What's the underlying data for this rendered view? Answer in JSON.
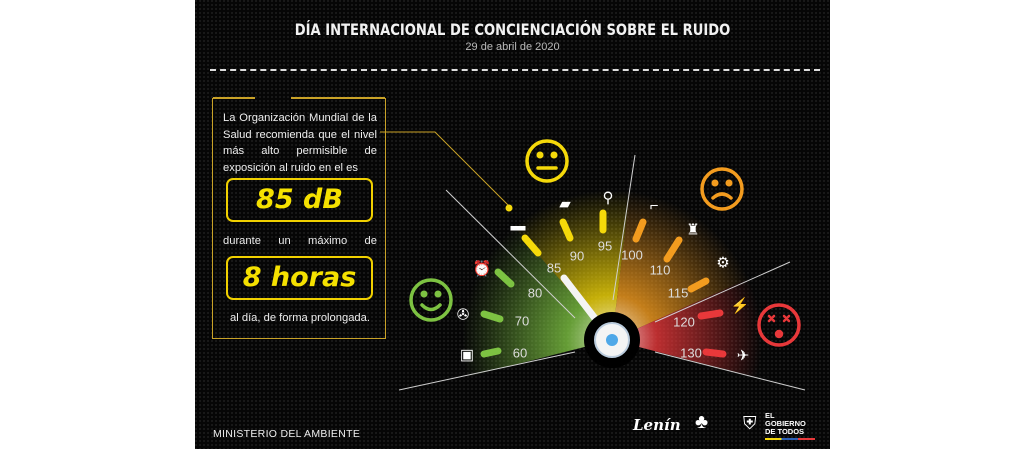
{
  "header": {
    "title": "DÍA INTERNACIONAL DE CONCIENCIACIÓN SOBRE EL RUIDO",
    "date": "29 de abril de 2020"
  },
  "info": {
    "intro": "La Organización Mundial de la Salud recomienda que el nivel más alto permisible de exposición al ruido en el es",
    "limit_db": "85 dB",
    "during": "durante un máximo de",
    "limit_hours": "8 horas",
    "per_day": "al día, de forma prolongada."
  },
  "gauge": {
    "needle_value": 85,
    "ticks": [
      {
        "label": "60",
        "icon": "washing-machine-icon",
        "color": "#7dc242"
      },
      {
        "label": "70",
        "icon": "fan-icon",
        "color": "#7dc242"
      },
      {
        "label": "80",
        "icon": "alarm-clock-icon",
        "color": "#7dc242"
      },
      {
        "label": "85",
        "icon": "car-icon",
        "color": "#f5d90a"
      },
      {
        "label": "90",
        "icon": "truck-icon",
        "color": "#f5d90a"
      },
      {
        "label": "95",
        "icon": "motorcycle-icon",
        "color": "#f5d90a"
      },
      {
        "label": "100",
        "icon": "hair-dryer-icon",
        "color": "#f39c1f"
      },
      {
        "label": "110",
        "icon": "blender-icon",
        "color": "#f39c1f"
      },
      {
        "label": "115",
        "icon": "tractor-icon",
        "color": "#f39c1f"
      },
      {
        "label": "120",
        "icon": "thunder-icon",
        "color": "#e8383a"
      },
      {
        "label": "130",
        "icon": "airplane-icon",
        "color": "#e8383a"
      }
    ],
    "faces": [
      {
        "name": "happy-face-icon",
        "color": "#7dc242"
      },
      {
        "name": "neutral-face-icon",
        "color": "#f5d90a"
      },
      {
        "name": "sad-face-icon",
        "color": "#f39c1f"
      },
      {
        "name": "dizzy-face-icon",
        "color": "#e8383a"
      }
    ]
  },
  "footer": {
    "ministry": "MINISTERIO DEL AMBIENTE",
    "logos": [
      "Lenín",
      "Toda una Vida",
      "EL GOBIERNO DE TODOS"
    ]
  }
}
